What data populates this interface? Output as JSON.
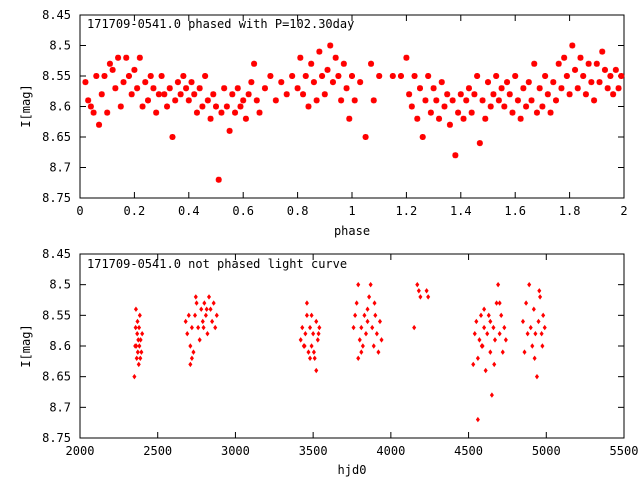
{
  "colors": {
    "points": "#ff0000",
    "frame": "#000000",
    "background": "#ffffff"
  },
  "chart_data": [
    {
      "type": "scatter",
      "title": "171709-0541.0 phased with P=102.30day",
      "xlabel": "phase",
      "ylabel": "I[mag]",
      "xlim": [
        0,
        2
      ],
      "ylim": [
        8.45,
        8.75
      ],
      "y_inverted": true,
      "grid": false,
      "legend": "none",
      "marker": "star",
      "x_ticks": [
        "0",
        "0.2",
        "0.4",
        "0.6",
        "0.8",
        "1",
        "1.2",
        "1.4",
        "1.6",
        "1.8",
        "2"
      ],
      "y_ticks": [
        "8.45",
        "8.5",
        "8.55",
        "8.6",
        "8.65",
        "8.7",
        "8.75"
      ],
      "points": [
        [
          0.02,
          8.56
        ],
        [
          0.03,
          8.59
        ],
        [
          0.04,
          8.6
        ],
        [
          0.05,
          8.61
        ],
        [
          0.06,
          8.55
        ],
        [
          0.07,
          8.63
        ],
        [
          0.08,
          8.58
        ],
        [
          0.09,
          8.55
        ],
        [
          0.1,
          8.61
        ],
        [
          0.11,
          8.53
        ],
        [
          0.12,
          8.54
        ],
        [
          0.13,
          8.57
        ],
        [
          0.14,
          8.52
        ],
        [
          0.15,
          8.6
        ],
        [
          0.16,
          8.56
        ],
        [
          0.17,
          8.52
        ],
        [
          0.18,
          8.55
        ],
        [
          0.19,
          8.58
        ],
        [
          0.2,
          8.54
        ],
        [
          0.21,
          8.57
        ],
        [
          0.22,
          8.52
        ],
        [
          0.23,
          8.6
        ],
        [
          0.24,
          8.56
        ],
        [
          0.25,
          8.59
        ],
        [
          0.26,
          8.55
        ],
        [
          0.27,
          8.57
        ],
        [
          0.28,
          8.61
        ],
        [
          0.29,
          8.58
        ],
        [
          0.3,
          8.55
        ],
        [
          0.31,
          8.58
        ],
        [
          0.32,
          8.6
        ],
        [
          0.33,
          8.57
        ],
        [
          0.34,
          8.65
        ],
        [
          0.35,
          8.59
        ],
        [
          0.36,
          8.56
        ],
        [
          0.37,
          8.58
        ],
        [
          0.38,
          8.55
        ],
        [
          0.39,
          8.57
        ],
        [
          0.4,
          8.59
        ],
        [
          0.41,
          8.56
        ],
        [
          0.42,
          8.58
        ],
        [
          0.43,
          8.61
        ],
        [
          0.44,
          8.57
        ],
        [
          0.45,
          8.6
        ],
        [
          0.46,
          8.55
        ],
        [
          0.47,
          8.59
        ],
        [
          0.48,
          8.62
        ],
        [
          0.49,
          8.58
        ],
        [
          0.5,
          8.6
        ],
        [
          0.51,
          8.72
        ],
        [
          0.52,
          8.61
        ],
        [
          0.53,
          8.57
        ],
        [
          0.54,
          8.6
        ],
        [
          0.55,
          8.64
        ],
        [
          0.56,
          8.58
        ],
        [
          0.57,
          8.61
        ],
        [
          0.58,
          8.57
        ],
        [
          0.59,
          8.6
        ],
        [
          0.6,
          8.59
        ],
        [
          0.61,
          8.62
        ],
        [
          0.62,
          8.58
        ],
        [
          0.63,
          8.56
        ],
        [
          0.64,
          8.53
        ],
        [
          0.65,
          8.59
        ],
        [
          0.66,
          8.61
        ],
        [
          0.68,
          8.57
        ],
        [
          0.7,
          8.55
        ],
        [
          0.72,
          8.59
        ],
        [
          0.74,
          8.56
        ],
        [
          0.76,
          8.58
        ],
        [
          0.78,
          8.55
        ],
        [
          0.8,
          8.57
        ],
        [
          0.81,
          8.52
        ],
        [
          0.82,
          8.58
        ],
        [
          0.83,
          8.55
        ],
        [
          0.84,
          8.6
        ],
        [
          0.85,
          8.53
        ],
        [
          0.86,
          8.56
        ],
        [
          0.87,
          8.59
        ],
        [
          0.88,
          8.51
        ],
        [
          0.89,
          8.55
        ],
        [
          0.9,
          8.58
        ],
        [
          0.91,
          8.54
        ],
        [
          0.92,
          8.5
        ],
        [
          0.93,
          8.56
        ],
        [
          0.94,
          8.52
        ],
        [
          0.95,
          8.55
        ],
        [
          0.96,
          8.59
        ],
        [
          0.97,
          8.53
        ],
        [
          0.98,
          8.57
        ],
        [
          0.99,
          8.62
        ],
        [
          1.0,
          8.55
        ],
        [
          1.01,
          8.59
        ],
        [
          1.03,
          8.56
        ],
        [
          1.05,
          8.65
        ],
        [
          1.07,
          8.53
        ],
        [
          1.08,
          8.59
        ],
        [
          1.1,
          8.55
        ],
        [
          1.15,
          8.55
        ],
        [
          1.18,
          8.55
        ],
        [
          1.2,
          8.52
        ],
        [
          1.21,
          8.58
        ],
        [
          1.22,
          8.6
        ],
        [
          1.23,
          8.55
        ],
        [
          1.24,
          8.62
        ],
        [
          1.25,
          8.57
        ],
        [
          1.26,
          8.65
        ],
        [
          1.27,
          8.59
        ],
        [
          1.28,
          8.55
        ],
        [
          1.29,
          8.61
        ],
        [
          1.3,
          8.57
        ],
        [
          1.31,
          8.59
        ],
        [
          1.32,
          8.62
        ],
        [
          1.33,
          8.56
        ],
        [
          1.34,
          8.6
        ],
        [
          1.35,
          8.58
        ],
        [
          1.36,
          8.63
        ],
        [
          1.37,
          8.59
        ],
        [
          1.38,
          8.68
        ],
        [
          1.39,
          8.61
        ],
        [
          1.4,
          8.58
        ],
        [
          1.41,
          8.62
        ],
        [
          1.42,
          8.59
        ],
        [
          1.43,
          8.57
        ],
        [
          1.44,
          8.61
        ],
        [
          1.45,
          8.58
        ],
        [
          1.46,
          8.55
        ],
        [
          1.47,
          8.66
        ],
        [
          1.48,
          8.59
        ],
        [
          1.49,
          8.62
        ],
        [
          1.5,
          8.56
        ],
        [
          1.51,
          8.6
        ],
        [
          1.52,
          8.58
        ],
        [
          1.53,
          8.55
        ],
        [
          1.54,
          8.59
        ],
        [
          1.55,
          8.57
        ],
        [
          1.56,
          8.6
        ],
        [
          1.57,
          8.56
        ],
        [
          1.58,
          8.58
        ],
        [
          1.59,
          8.61
        ],
        [
          1.6,
          8.55
        ],
        [
          1.61,
          8.59
        ],
        [
          1.62,
          8.62
        ],
        [
          1.63,
          8.57
        ],
        [
          1.64,
          8.6
        ],
        [
          1.65,
          8.56
        ],
        [
          1.66,
          8.59
        ],
        [
          1.67,
          8.53
        ],
        [
          1.68,
          8.61
        ],
        [
          1.69,
          8.57
        ],
        [
          1.7,
          8.6
        ],
        [
          1.71,
          8.55
        ],
        [
          1.72,
          8.58
        ],
        [
          1.73,
          8.61
        ],
        [
          1.74,
          8.56
        ],
        [
          1.75,
          8.59
        ],
        [
          1.76,
          8.53
        ],
        [
          1.77,
          8.57
        ],
        [
          1.78,
          8.52
        ],
        [
          1.79,
          8.55
        ],
        [
          1.8,
          8.58
        ],
        [
          1.81,
          8.5
        ],
        [
          1.82,
          8.54
        ],
        [
          1.83,
          8.57
        ],
        [
          1.84,
          8.52
        ],
        [
          1.85,
          8.55
        ],
        [
          1.86,
          8.58
        ],
        [
          1.87,
          8.53
        ],
        [
          1.88,
          8.56
        ],
        [
          1.89,
          8.59
        ],
        [
          1.9,
          8.53
        ],
        [
          1.91,
          8.56
        ],
        [
          1.92,
          8.51
        ],
        [
          1.93,
          8.54
        ],
        [
          1.94,
          8.57
        ],
        [
          1.95,
          8.55
        ],
        [
          1.96,
          8.58
        ],
        [
          1.97,
          8.54
        ],
        [
          1.98,
          8.57
        ],
        [
          1.99,
          8.55
        ]
      ]
    },
    {
      "type": "scatter",
      "title": "171709-0541.0 not phased light curve",
      "xlabel": "hjd0",
      "ylabel": "I[mag]",
      "xlim": [
        2000,
        5500
      ],
      "ylim": [
        8.45,
        8.75
      ],
      "y_inverted": true,
      "grid": false,
      "legend": "none",
      "marker": "diamond",
      "x_ticks": [
        "2000",
        "2500",
        "3000",
        "3500",
        "4000",
        "4500",
        "5000",
        "5500"
      ],
      "y_ticks": [
        "8.45",
        "8.5",
        "8.55",
        "8.6",
        "8.65",
        "8.7",
        "8.75"
      ],
      "points": [
        [
          2350,
          8.65
        ],
        [
          2355,
          8.6
        ],
        [
          2358,
          8.57
        ],
        [
          2360,
          8.54
        ],
        [
          2362,
          8.6
        ],
        [
          2365,
          8.62
        ],
        [
          2368,
          8.58
        ],
        [
          2370,
          8.56
        ],
        [
          2372,
          8.61
        ],
        [
          2375,
          8.59
        ],
        [
          2378,
          8.63
        ],
        [
          2380,
          8.57
        ],
        [
          2382,
          8.6
        ],
        [
          2385,
          8.55
        ],
        [
          2388,
          8.62
        ],
        [
          2390,
          8.59
        ],
        [
          2395,
          8.61
        ],
        [
          2400,
          8.58
        ],
        [
          2680,
          8.56
        ],
        [
          2690,
          8.58
        ],
        [
          2700,
          8.55
        ],
        [
          2710,
          8.6
        ],
        [
          2720,
          8.57
        ],
        [
          2730,
          8.61
        ],
        [
          2740,
          8.55
        ],
        [
          2750,
          8.53
        ],
        [
          2760,
          8.57
        ],
        [
          2770,
          8.59
        ],
        [
          2780,
          8.54
        ],
        [
          2790,
          8.56
        ],
        [
          2800,
          8.53
        ],
        [
          2810,
          8.55
        ],
        [
          2820,
          8.58
        ],
        [
          2830,
          8.52
        ],
        [
          2840,
          8.54
        ],
        [
          2850,
          8.56
        ],
        [
          2860,
          8.53
        ],
        [
          2870,
          8.57
        ],
        [
          2880,
          8.55
        ],
        [
          2710,
          8.63
        ],
        [
          2720,
          8.62
        ],
        [
          2745,
          8.52
        ],
        [
          2795,
          8.57
        ],
        [
          2815,
          8.54
        ],
        [
          3420,
          8.59
        ],
        [
          3430,
          8.57
        ],
        [
          3440,
          8.6
        ],
        [
          3450,
          8.58
        ],
        [
          3460,
          8.55
        ],
        [
          3470,
          8.61
        ],
        [
          3480,
          8.57
        ],
        [
          3490,
          8.6
        ],
        [
          3500,
          8.58
        ],
        [
          3510,
          8.62
        ],
        [
          3520,
          8.56
        ],
        [
          3530,
          8.59
        ],
        [
          3540,
          8.57
        ],
        [
          3460,
          8.53
        ],
        [
          3490,
          8.55
        ],
        [
          3520,
          8.64
        ],
        [
          3505,
          8.61
        ],
        [
          3445,
          8.6
        ],
        [
          3480,
          8.62
        ],
        [
          3535,
          8.58
        ],
        [
          3760,
          8.57
        ],
        [
          3770,
          8.55
        ],
        [
          3780,
          8.53
        ],
        [
          3790,
          8.5
        ],
        [
          3800,
          8.59
        ],
        [
          3810,
          8.57
        ],
        [
          3820,
          8.6
        ],
        [
          3830,
          8.55
        ],
        [
          3840,
          8.58
        ],
        [
          3850,
          8.56
        ],
        [
          3860,
          8.52
        ],
        [
          3870,
          8.5
        ],
        [
          3880,
          8.57
        ],
        [
          3890,
          8.6
        ],
        [
          3900,
          8.55
        ],
        [
          3910,
          8.58
        ],
        [
          3920,
          8.61
        ],
        [
          3930,
          8.56
        ],
        [
          3940,
          8.59
        ],
        [
          3790,
          8.62
        ],
        [
          3810,
          8.61
        ],
        [
          3850,
          8.54
        ],
        [
          3895,
          8.53
        ],
        [
          4150,
          8.57
        ],
        [
          4170,
          8.5
        ],
        [
          4180,
          8.51
        ],
        [
          4190,
          8.52
        ],
        [
          4230,
          8.51
        ],
        [
          4240,
          8.52
        ],
        [
          4530,
          8.63
        ],
        [
          4540,
          8.58
        ],
        [
          4550,
          8.56
        ],
        [
          4560,
          8.62
        ],
        [
          4570,
          8.59
        ],
        [
          4580,
          8.55
        ],
        [
          4590,
          8.6
        ],
        [
          4600,
          8.57
        ],
        [
          4610,
          8.64
        ],
        [
          4620,
          8.58
        ],
        [
          4630,
          8.55
        ],
        [
          4640,
          8.61
        ],
        [
          4650,
          8.68
        ],
        [
          4660,
          8.57
        ],
        [
          4670,
          8.59
        ],
        [
          4680,
          8.53
        ],
        [
          4690,
          8.5
        ],
        [
          4700,
          8.58
        ],
        [
          4710,
          8.55
        ],
        [
          4720,
          8.61
        ],
        [
          4730,
          8.57
        ],
        [
          4740,
          8.59
        ],
        [
          4560,
          8.72
        ],
        [
          4600,
          8.54
        ],
        [
          4640,
          8.56
        ],
        [
          4665,
          8.63
        ],
        [
          4700,
          8.53
        ],
        [
          4585,
          8.6
        ],
        [
          4850,
          8.56
        ],
        [
          4860,
          8.61
        ],
        [
          4870,
          8.53
        ],
        [
          4880,
          8.58
        ],
        [
          4890,
          8.5
        ],
        [
          4900,
          8.57
        ],
        [
          4910,
          8.6
        ],
        [
          4920,
          8.54
        ],
        [
          4930,
          8.58
        ],
        [
          4940,
          8.65
        ],
        [
          4950,
          8.56
        ],
        [
          4960,
          8.52
        ],
        [
          4970,
          8.58
        ],
        [
          4980,
          8.55
        ],
        [
          4990,
          8.57
        ],
        [
          4925,
          8.62
        ],
        [
          4955,
          8.51
        ],
        [
          4975,
          8.6
        ]
      ]
    }
  ]
}
